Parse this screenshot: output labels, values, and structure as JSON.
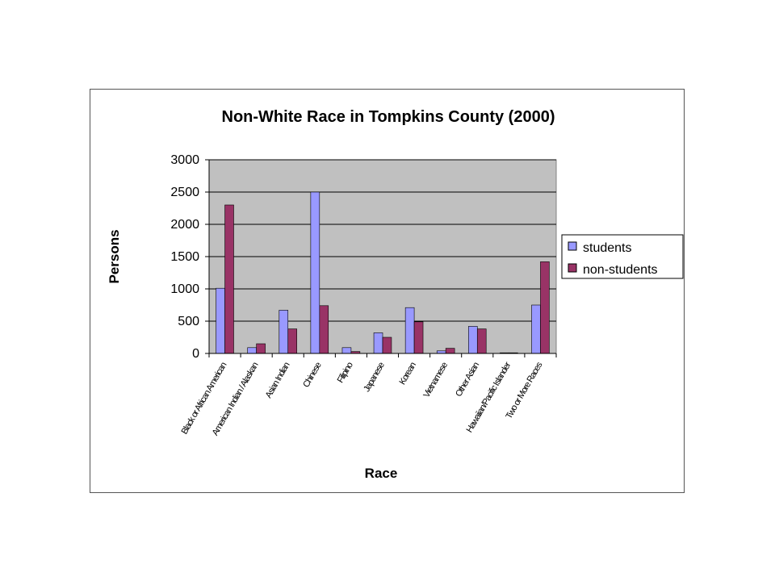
{
  "chart_data": {
    "type": "bar",
    "title": "Non-White Race in Tompkins County (2000)",
    "xlabel": "Race",
    "ylabel": "Persons",
    "ylim": [
      0,
      3000
    ],
    "yticks": [
      "0",
      "500",
      "1000",
      "1500",
      "2000",
      "2500",
      "3000"
    ],
    "grid": true,
    "legend_position": "right",
    "plot_background": "#c0c0c0",
    "categories": [
      "Black or African American",
      "American Indian / Alaskan",
      "Asian Indian",
      "Chinese",
      "Filipino",
      "Japanese",
      "Korean",
      "Vietnamese",
      "Other Asian",
      "Hawaiian/Pacific Islander",
      "Two or More Races"
    ],
    "series": [
      {
        "name": "students",
        "color": "#9999ff",
        "values": [
          1010,
          90,
          670,
          2500,
          90,
          320,
          710,
          40,
          420,
          10,
          750
        ]
      },
      {
        "name": "non-students",
        "color": "#993366",
        "values": [
          2300,
          150,
          380,
          740,
          30,
          250,
          490,
          80,
          380,
          10,
          1420
        ]
      }
    ]
  }
}
